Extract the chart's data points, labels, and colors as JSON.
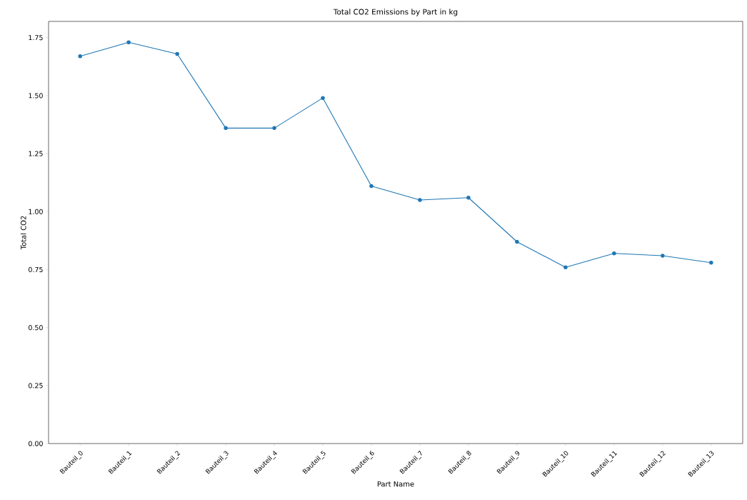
{
  "chart_data": {
    "type": "line",
    "title": "Total CO2 Emissions by Part in kg",
    "xlabel": "Part Name",
    "ylabel": "Total CO2",
    "categories": [
      "Bauteil_0",
      "Bauteil_1",
      "Bauteil_2",
      "Bauteil_3",
      "Bauteil_4",
      "Bauteil_5",
      "Bauteil_6",
      "Bauteil_7",
      "Bauteil_8",
      "Bauteil_9",
      "Bauteil_10",
      "Bauteil_11",
      "Bauteil_12",
      "Bauteil_13"
    ],
    "series": [
      {
        "color": "#1f77b4",
        "values": [
          1.67,
          1.73,
          1.68,
          1.36,
          1.36,
          1.49,
          1.11,
          1.05,
          1.06,
          0.87,
          0.76,
          0.82,
          0.81,
          0.78
        ]
      }
    ],
    "ylim": [
      0,
      1.82
    ],
    "yticks": [
      {
        "value": 0,
        "label": "0.00"
      },
      {
        "value": 0.25,
        "label": "0.25"
      },
      {
        "value": 0.5,
        "label": "0.50"
      },
      {
        "value": 0.75,
        "label": "0.75"
      },
      {
        "value": 1,
        "label": "1.00"
      },
      {
        "value": 1.25,
        "label": "1.25"
      },
      {
        "value": 1.5,
        "label": "1.50"
      },
      {
        "value": 1.75,
        "label": "1.75"
      }
    ],
    "grid": false,
    "marker": "circle",
    "line_style": "solid"
  }
}
